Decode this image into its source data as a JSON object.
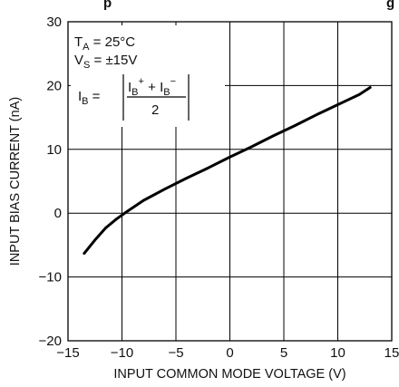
{
  "chart_data": {
    "type": "line",
    "title_fragment": "p",
    "title_fragment_right": "g",
    "xlabel": "INPUT COMMON MODE VOLTAGE (V)",
    "ylabel": "INPUT BIAS CURRENT (nA)",
    "xlim": [
      -15,
      15
    ],
    "ylim": [
      -20,
      30
    ],
    "xticks": [
      -15,
      -10,
      -5,
      0,
      5,
      10,
      15
    ],
    "yticks": [
      -20,
      -10,
      0,
      10,
      20,
      30
    ],
    "xtick_labels": [
      "−15",
      "−10",
      "−5",
      "0",
      "5",
      "10",
      "15"
    ],
    "ytick_labels": [
      "−20",
      "−10",
      "0",
      "10",
      "20",
      "30"
    ],
    "grid": true,
    "series": [
      {
        "x": [
          -13.5,
          -12.5,
          -11.5,
          -10.5,
          -9.5,
          -8.0,
          -6.0,
          -4.0,
          -2.0,
          0.0,
          2.0,
          4.0,
          6.0,
          8.0,
          10.0,
          12.0,
          13.0
        ],
        "y": [
          -6.3,
          -4.2,
          -2.3,
          -0.9,
          0.3,
          2.0,
          3.8,
          5.5,
          7.1,
          8.8,
          10.4,
          12.1,
          13.7,
          15.4,
          17.0,
          18.6,
          19.7
        ]
      }
    ],
    "annotations": {
      "ta_main": "T",
      "ta_sub": "A",
      "ta_value": " = 25°C",
      "vs_main": "V",
      "vs_sub": "S",
      "vs_value": " = ±15V",
      "ib_main": "I",
      "ib_sub": "B",
      "ib_equals": " =",
      "num_i1": "I",
      "num_sub1": "B",
      "num_sup1": "+",
      "num_plus": " + ",
      "num_i2": "I",
      "num_sub2": "B",
      "num_sup2": "−",
      "denominator": "2"
    },
    "line_color": "#000000"
  }
}
